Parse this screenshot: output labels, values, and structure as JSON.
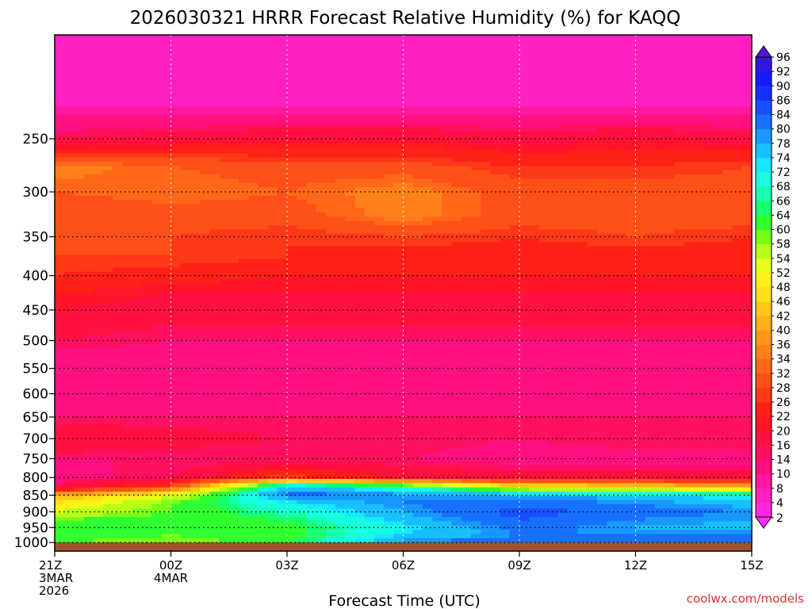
{
  "chart_data": {
    "type": "heatmap",
    "title": "2026030321 HRRR Forecast Relative Humidity (%) for KAQQ",
    "xlabel": "Forecast Time (UTC)",
    "ylabel": "",
    "credit": "coolwx.com/models",
    "x_ticks": [
      {
        "hour": 0,
        "lines": [
          "21Z",
          "3MAR",
          "2026"
        ]
      },
      {
        "hour": 3,
        "lines": [
          "00Z",
          "4MAR"
        ]
      },
      {
        "hour": 6,
        "lines": [
          "03Z"
        ]
      },
      {
        "hour": 9,
        "lines": [
          "06Z"
        ]
      },
      {
        "hour": 12,
        "lines": [
          "09Z"
        ]
      },
      {
        "hour": 15,
        "lines": [
          "12Z"
        ]
      },
      {
        "hour": 18,
        "lines": [
          "15Z"
        ]
      }
    ],
    "x_range_hours": [
      0,
      18
    ],
    "y_ticks": [
      250,
      300,
      350,
      400,
      450,
      500,
      550,
      600,
      650,
      700,
      750,
      800,
      850,
      900,
      950,
      1000
    ],
    "y_scale": "log-pressure",
    "y_range_hpa": [
      175,
      1030
    ],
    "surface_hpa": 1020,
    "grid": "dotted",
    "colorbar": {
      "levels": [
        2,
        4,
        8,
        10,
        14,
        16,
        20,
        22,
        26,
        28,
        32,
        34,
        36,
        40,
        42,
        46,
        48,
        52,
        54,
        58,
        60,
        64,
        66,
        68,
        72,
        74,
        78,
        80,
        84,
        86,
        90,
        92,
        96
      ],
      "colors": [
        "#ff30ff",
        "#ff28e0",
        "#ff20c0",
        "#ff18a0",
        "#ff1080",
        "#ff1060",
        "#ff1040",
        "#ff1428",
        "#ff2018",
        "#ff3818",
        "#ff5018",
        "#ff6818",
        "#ff8018",
        "#ff9818",
        "#ffb018",
        "#ffc818",
        "#ffe018",
        "#fff018",
        "#e8ff18",
        "#b8ff18",
        "#78ff18",
        "#30ff30",
        "#18ff70",
        "#18ffb0",
        "#18ffe0",
        "#18e8ff",
        "#18c0ff",
        "#1898ff",
        "#1870ff",
        "#1850ff",
        "#1830ff",
        "#1818ff",
        "#3018e0",
        "#5018d0"
      ],
      "placement": "right"
    },
    "profile_levels_hpa": [
      175,
      200,
      225,
      250,
      275,
      300,
      325,
      350,
      375,
      400,
      425,
      450,
      475,
      500,
      550,
      600,
      650,
      700,
      750,
      800,
      825,
      850,
      875,
      900,
      925,
      950,
      975,
      1000,
      1020
    ],
    "series": [
      {
        "hour": 0,
        "rh": [
          6,
          6,
          8,
          16,
          36,
          32,
          28,
          28,
          28,
          26,
          22,
          20,
          18,
          16,
          10,
          10,
          14,
          20,
          14,
          12,
          16,
          40,
          48,
          54,
          60,
          64,
          62,
          60,
          60
        ]
      },
      {
        "hour": 3,
        "rh": [
          6,
          6,
          8,
          18,
          32,
          34,
          30,
          28,
          28,
          24,
          20,
          18,
          16,
          14,
          10,
          10,
          14,
          18,
          14,
          16,
          28,
          52,
          60,
          60,
          62,
          62,
          60,
          58,
          58
        ]
      },
      {
        "hour": 6,
        "rh": [
          6,
          8,
          8,
          20,
          30,
          32,
          30,
          26,
          26,
          22,
          20,
          18,
          16,
          14,
          10,
          10,
          14,
          16,
          14,
          28,
          76,
          82,
          72,
          68,
          64,
          62,
          62,
          62,
          60
        ]
      },
      {
        "hour": 9,
        "rh": [
          6,
          6,
          8,
          20,
          30,
          36,
          36,
          28,
          24,
          22,
          20,
          18,
          16,
          14,
          10,
          10,
          14,
          16,
          14,
          20,
          66,
          80,
          80,
          78,
          76,
          72,
          74,
          80,
          80
        ]
      },
      {
        "hour": 12,
        "rh": [
          6,
          6,
          8,
          18,
          26,
          30,
          30,
          26,
          24,
          22,
          20,
          18,
          16,
          14,
          10,
          10,
          14,
          14,
          12,
          18,
          48,
          78,
          82,
          86,
          84,
          82,
          80,
          84,
          84
        ]
      },
      {
        "hour": 15,
        "rh": [
          6,
          6,
          8,
          20,
          26,
          30,
          30,
          28,
          24,
          22,
          20,
          18,
          16,
          14,
          10,
          10,
          14,
          16,
          12,
          18,
          44,
          76,
          80,
          82,
          80,
          78,
          80,
          84,
          84
        ]
      },
      {
        "hour": 18,
        "rh": [
          6,
          6,
          8,
          18,
          28,
          30,
          30,
          26,
          24,
          22,
          20,
          18,
          16,
          14,
          10,
          10,
          14,
          16,
          12,
          18,
          42,
          70,
          76,
          80,
          78,
          76,
          80,
          84,
          84
        ]
      }
    ]
  }
}
